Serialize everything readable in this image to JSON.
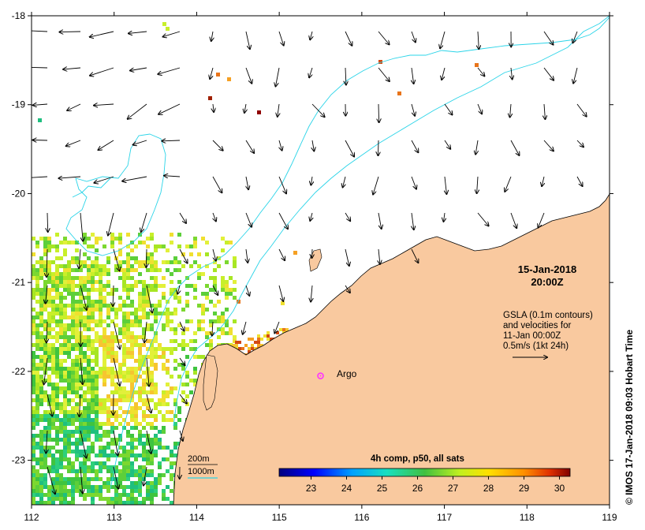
{
  "map": {
    "lon_range": [
      112,
      119
    ],
    "lat_range": [
      -23.5,
      -18
    ],
    "x_ticks": [
      112,
      113,
      114,
      115,
      116,
      117,
      118,
      119
    ],
    "y_ticks": [
      -18,
      -19,
      -20,
      -21,
      -22,
      -23
    ],
    "land_color": "#f9c99f",
    "contour_color": "#2ad4e8"
  },
  "title": {
    "date": "15-Jan-2018",
    "time": "20:00Z"
  },
  "info": {
    "line1": "GSLA (0.1m contours)",
    "line2": "and velocities for",
    "line3": "11-Jan 00:00Z",
    "line4": "0.5m/s (1kt 24h)"
  },
  "argo": {
    "label": "Argo",
    "lon": 115.5,
    "lat": -22.05,
    "color": "#ff33ff"
  },
  "legend": {
    "contour_200": "200m",
    "contour_1000": "1000m"
  },
  "colorbar": {
    "title": "4h comp, p50, all sats",
    "ticks": [
      "23",
      "24",
      "25",
      "26",
      "27",
      "28",
      "29",
      "30"
    ],
    "range": [
      22.1,
      30.3
    ]
  },
  "credit": "© IMOS 17-Jan-2018 09:03 Hobart Time"
}
